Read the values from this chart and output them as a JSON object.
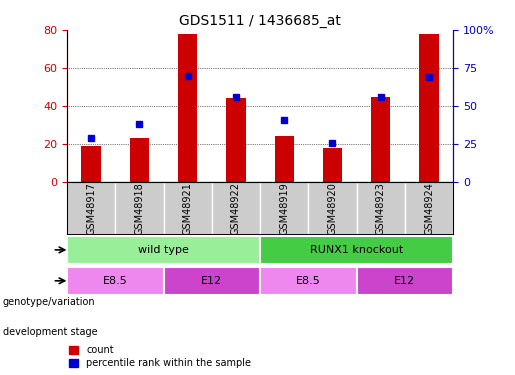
{
  "title": "GDS1511 / 1436685_at",
  "samples": [
    "GSM48917",
    "GSM48918",
    "GSM48921",
    "GSM48922",
    "GSM48919",
    "GSM48920",
    "GSM48923",
    "GSM48924"
  ],
  "counts": [
    19,
    23,
    78,
    44,
    24,
    18,
    45,
    78
  ],
  "percentiles": [
    29,
    38,
    70,
    56,
    41,
    26,
    56,
    69
  ],
  "ylim_left": [
    0,
    80
  ],
  "ylim_right": [
    0,
    100
  ],
  "yticks_left": [
    0,
    20,
    40,
    60,
    80
  ],
  "yticks_right": [
    0,
    25,
    50,
    75,
    100
  ],
  "bar_color": "#CC0000",
  "dot_color": "#0000CC",
  "bar_width": 0.4,
  "genotype_groups": [
    {
      "label": "wild type",
      "start": 0,
      "end": 4,
      "color": "#99EE99"
    },
    {
      "label": "RUNX1 knockout",
      "start": 4,
      "end": 8,
      "color": "#44CC44"
    }
  ],
  "dev_stage_groups": [
    {
      "label": "E8.5",
      "start": 0,
      "end": 2,
      "color": "#EE88EE"
    },
    {
      "label": "E12",
      "start": 2,
      "end": 4,
      "color": "#CC44CC"
    },
    {
      "label": "E8.5",
      "start": 4,
      "end": 6,
      "color": "#EE88EE"
    },
    {
      "label": "E12",
      "start": 6,
      "end": 8,
      "color": "#CC44CC"
    }
  ],
  "legend_count_label": "count",
  "legend_percentile_label": "percentile rank within the sample",
  "tick_color_left": "#CC0000",
  "tick_color_right": "#0000CC",
  "background_color": "#ffffff",
  "plot_area_color": "#ffffff",
  "xlabel_color": "#333333",
  "grid_color": "#000000",
  "annotation_row1_label": "genotype/variation",
  "annotation_row2_label": "development stage"
}
